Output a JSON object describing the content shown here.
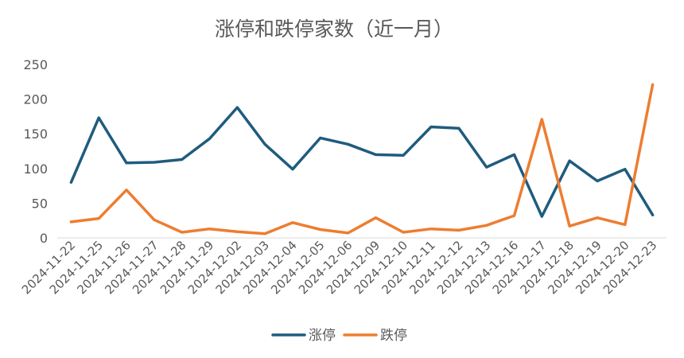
{
  "chart_data": {
    "type": "line",
    "title": "涨停和跌停家数（近一月）",
    "xlabel": "",
    "ylabel": "",
    "ylim": [
      0,
      250
    ],
    "yticks": [
      0,
      50,
      100,
      150,
      200,
      250
    ],
    "grid": false,
    "legend_position": "bottom",
    "categories": [
      "2024-11-22",
      "2024-11-25",
      "2024-11-26",
      "2024-11-27",
      "2024-11-28",
      "2024-11-29",
      "2024-12-02",
      "2024-12-03",
      "2024-12-04",
      "2024-12-05",
      "2024-12-06",
      "2024-12-09",
      "2024-12-10",
      "2024-12-11",
      "2024-12-12",
      "2024-12-13",
      "2024-12-16",
      "2024-12-17",
      "2024-12-18",
      "2024-12-19",
      "2024-12-20",
      "2024-12-23"
    ],
    "series": [
      {
        "name": "涨停",
        "color": "#1F5C7E",
        "values": [
          80,
          173,
          108,
          109,
          113,
          143,
          188,
          135,
          99,
          144,
          135,
          120,
          119,
          160,
          158,
          102,
          120,
          31,
          111,
          82,
          99,
          33
        ]
      },
      {
        "name": "跌停",
        "color": "#ED7D31",
        "values": [
          23,
          28,
          69,
          26,
          8,
          13,
          9,
          6,
          22,
          12,
          7,
          29,
          8,
          13,
          11,
          18,
          32,
          171,
          17,
          29,
          19,
          221
        ]
      }
    ]
  }
}
